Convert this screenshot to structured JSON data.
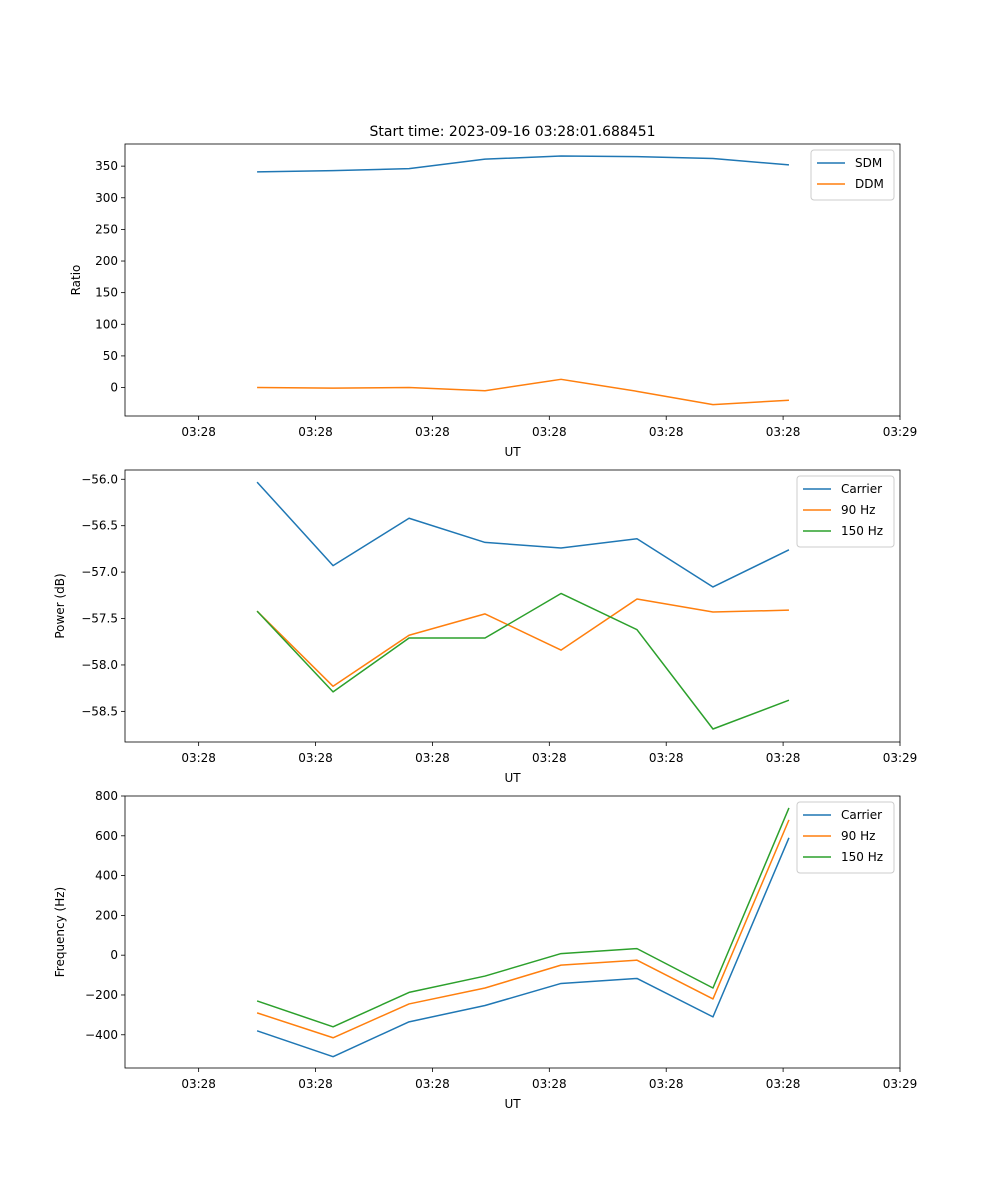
{
  "chart_data": [
    {
      "type": "line",
      "title": "Start time: 2023-09-16 03:28:01.688451",
      "xlabel": "UT",
      "ylabel": "Ratio",
      "x_ticks": [
        "03:28",
        "03:28",
        "03:28",
        "03:28",
        "03:28",
        "03:28",
        "03:29"
      ],
      "x": [
        0.5,
        1.15,
        1.8,
        2.45,
        3.1,
        3.75,
        4.4,
        5.05
      ],
      "xlim": [
        -0.63,
        6.0
      ],
      "ylim": [
        -45,
        385
      ],
      "y_ticks": [
        0,
        50,
        100,
        150,
        200,
        250,
        300,
        350
      ],
      "legend_loc": "upper right",
      "series": [
        {
          "name": "SDM",
          "color": "#1f77b4",
          "values": [
            341,
            343,
            346,
            361,
            366,
            365,
            362,
            352
          ]
        },
        {
          "name": "DDM",
          "color": "#ff7f0e",
          "values": [
            0,
            -1,
            0,
            -5,
            13,
            -6,
            -27,
            -20
          ]
        }
      ]
    },
    {
      "type": "line",
      "title": "",
      "xlabel": "UT",
      "ylabel": "Power (dB)",
      "x_ticks": [
        "03:28",
        "03:28",
        "03:28",
        "03:28",
        "03:28",
        "03:28",
        "03:29"
      ],
      "x": [
        0.5,
        1.15,
        1.8,
        2.45,
        3.1,
        3.75,
        4.4,
        5.05
      ],
      "xlim": [
        -0.63,
        6.0
      ],
      "ylim": [
        -58.83,
        -55.9
      ],
      "y_ticks": [
        -58.5,
        -58.0,
        -57.5,
        -57.0,
        -56.5,
        -56.0
      ],
      "y_tick_labels": [
        "−58.5",
        "−58.0",
        "−57.5",
        "−57.0",
        "−56.5",
        "−56.0"
      ],
      "legend_loc": "upper right",
      "series": [
        {
          "name": "Carrier",
          "color": "#1f77b4",
          "values": [
            -56.03,
            -56.93,
            -56.42,
            -56.68,
            -56.74,
            -56.64,
            -57.16,
            -56.76
          ]
        },
        {
          "name": "90 Hz",
          "color": "#ff7f0e",
          "values": [
            -57.42,
            -58.23,
            -57.68,
            -57.45,
            -57.84,
            -57.29,
            -57.43,
            -57.41
          ]
        },
        {
          "name": "150 Hz",
          "color": "#2ca02c",
          "values": [
            -57.42,
            -58.29,
            -57.71,
            -57.71,
            -57.23,
            -57.62,
            -58.69,
            -58.38
          ]
        }
      ]
    },
    {
      "type": "line",
      "title": "",
      "xlabel": "UT",
      "ylabel": "Frequency (Hz)",
      "x_ticks": [
        "03:28",
        "03:28",
        "03:28",
        "03:28",
        "03:28",
        "03:28",
        "03:29"
      ],
      "x": [
        0.5,
        1.15,
        1.8,
        2.45,
        3.1,
        3.75,
        4.4,
        5.05
      ],
      "xlim": [
        -0.63,
        6.0
      ],
      "ylim": [
        -567,
        800
      ],
      "y_ticks": [
        -400,
        -200,
        0,
        200,
        400,
        600,
        800
      ],
      "y_tick_labels": [
        "−400",
        "−200",
        "0",
        "200",
        "400",
        "600",
        "800"
      ],
      "legend_loc": "upper right",
      "series": [
        {
          "name": "Carrier",
          "color": "#1f77b4",
          "values": [
            -380,
            -510,
            -335,
            -253,
            -142,
            -117,
            -310,
            590
          ]
        },
        {
          "name": "90 Hz",
          "color": "#ff7f0e",
          "values": [
            -290,
            -415,
            -245,
            -165,
            -50,
            -25,
            -220,
            680
          ]
        },
        {
          "name": "150 Hz",
          "color": "#2ca02c",
          "values": [
            -230,
            -360,
            -187,
            -105,
            8,
            33,
            -165,
            740
          ]
        }
      ]
    }
  ]
}
